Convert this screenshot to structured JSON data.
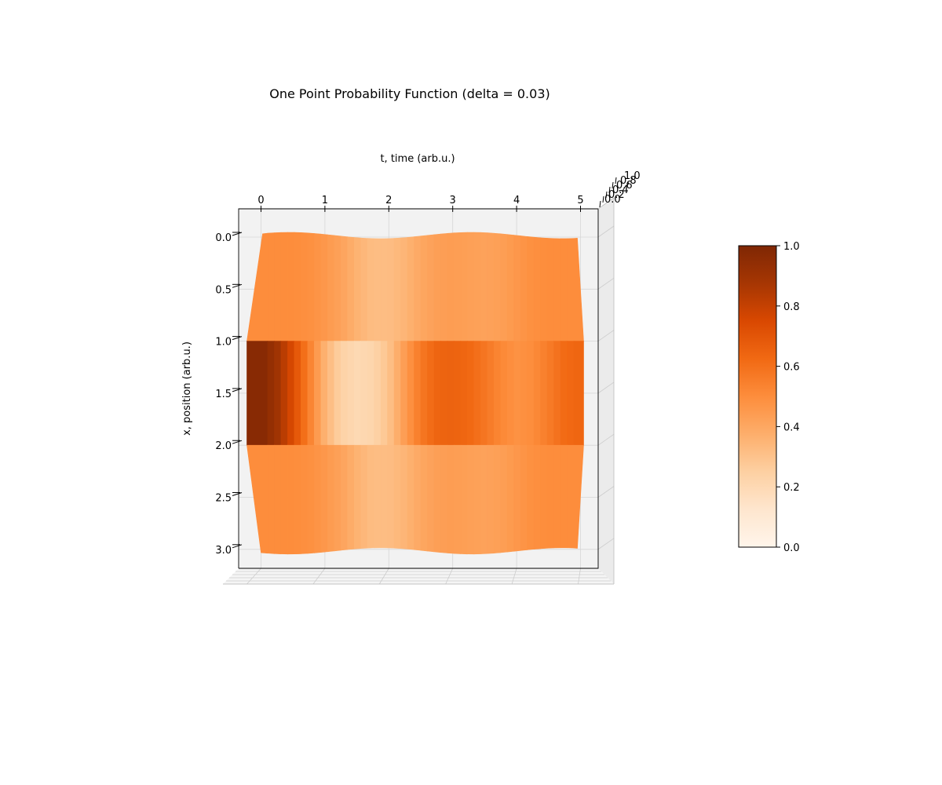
{
  "chart_data": {
    "type": "surface",
    "title": "One Point Probability Function (delta = 0.03)",
    "xlabel": "t, time (arb.u.)",
    "ylabel": "x, position (arb.u.)",
    "zlabel": "",
    "x_ticks": [
      "0",
      "1",
      "2",
      "3",
      "4",
      "5"
    ],
    "y_ticks": [
      "0.0",
      "0.5",
      "1.0",
      "1.5",
      "2.0",
      "2.5",
      "3.0"
    ],
    "z_ticks": [
      "0.0",
      "0.2",
      "0.4",
      "0.6",
      "0.8",
      "1.0"
    ],
    "colorbar_ticks": [
      "0.0",
      "0.2",
      "0.4",
      "0.6",
      "0.8",
      "1.0"
    ],
    "xlim": [
      0,
      5
    ],
    "ylim": [
      0,
      3
    ],
    "zlim": [
      0,
      1
    ],
    "colormap": "Oranges",
    "region_bounds_x": [
      0,
      1,
      2,
      3
    ],
    "series": [
      {
        "region": "outer",
        "t": [
          0,
          0.25,
          0.5,
          0.75,
          1.0,
          1.25,
          1.5,
          1.75,
          2.0,
          2.25,
          2.5,
          2.75,
          3.0,
          3.25,
          3.5,
          3.75,
          4.0,
          4.25,
          4.5,
          4.75,
          5.0
        ],
        "values": [
          0.5,
          0.5,
          0.5,
          0.49,
          0.46,
          0.42,
          0.36,
          0.32,
          0.32,
          0.35,
          0.4,
          0.43,
          0.44,
          0.43,
          0.42,
          0.43,
          0.46,
          0.49,
          0.5,
          0.5,
          0.5
        ]
      },
      {
        "region": "middle",
        "t": [
          0,
          0.25,
          0.5,
          0.75,
          1.0,
          1.25,
          1.5,
          1.75,
          2.0,
          2.25,
          2.5,
          2.75,
          3.0,
          3.25,
          3.5,
          3.75,
          4.0,
          4.25,
          4.5,
          4.75,
          5.0
        ],
        "values": [
          0.99,
          0.9,
          0.74,
          0.55,
          0.36,
          0.24,
          0.2,
          0.22,
          0.3,
          0.44,
          0.57,
          0.64,
          0.65,
          0.63,
          0.58,
          0.52,
          0.48,
          0.5,
          0.56,
          0.62,
          0.64
        ]
      }
    ],
    "grid": true,
    "colorbar": "right",
    "view": "top-down"
  }
}
